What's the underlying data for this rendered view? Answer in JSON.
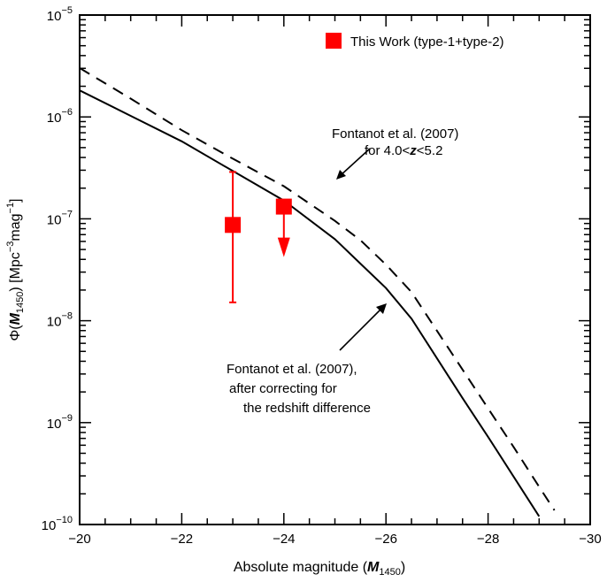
{
  "chart_data": {
    "type": "line",
    "xlabel": "Absolute magnitude (M1450)",
    "xlabel_parts": {
      "prefix": "Absolute magnitude (",
      "var": "M",
      "sub": "1450",
      "suffix": ")"
    },
    "ylabel": "Φ(M1450) [Mpc−3mag−1]",
    "ylabel_parts": {
      "phi": "Φ(",
      "var": "M",
      "sub": "1450",
      "unit_open": ") [Mpc",
      "exp1": "−3",
      "mag": "mag",
      "exp2": "−1",
      "close": "]"
    },
    "xlim": [
      -20,
      -30
    ],
    "ylim_log10": [
      -10,
      -5
    ],
    "y_scale": "log",
    "x_ticks": [
      -20,
      -22,
      -24,
      -26,
      -28,
      -30
    ],
    "x_tick_labels": [
      "−20",
      "−22",
      "−24",
      "−26",
      "−28",
      "−30"
    ],
    "y_ticks_log10": [
      -10,
      -9,
      -8,
      -7,
      -6,
      -5
    ],
    "y_tick_labels": [
      {
        "base": "10",
        "exp": "−10"
      },
      {
        "base": "10",
        "exp": "−9"
      },
      {
        "base": "10",
        "exp": "−8"
      },
      {
        "base": "10",
        "exp": "−7"
      },
      {
        "base": "10",
        "exp": "−6"
      },
      {
        "base": "10",
        "exp": "−5"
      }
    ],
    "series": [
      {
        "style": "solid",
        "color": "#000000",
        "x": [
          -20.0,
          -21.0,
          -22.0,
          -23.0,
          -24.0,
          -25.0,
          -25.5,
          -26.0,
          -26.5,
          -27.0,
          -27.5,
          -28.0,
          -28.5,
          -29.0
        ],
        "log_y": [
          -5.74,
          -5.99,
          -6.24,
          -6.53,
          -6.82,
          -7.2,
          -7.44,
          -7.68,
          -7.98,
          -8.37,
          -8.76,
          -9.14,
          -9.53,
          -9.92
        ]
      },
      {
        "style": "dashed",
        "color": "#000000",
        "x": [
          -20.0,
          -21.0,
          -22.0,
          -23.0,
          -24.0,
          -25.0,
          -25.5,
          -26.0,
          -26.5,
          -27.0,
          -27.5,
          -28.0,
          -28.5,
          -29.0,
          -29.3
        ],
        "log_y": [
          -5.52,
          -5.82,
          -6.13,
          -6.41,
          -6.68,
          -7.02,
          -7.21,
          -7.45,
          -7.72,
          -8.1,
          -8.48,
          -8.86,
          -9.24,
          -9.63,
          -9.86
        ]
      }
    ],
    "points": [
      {
        "x": -23.0,
        "log_y": -7.06,
        "log_err_lo": -7.82,
        "log_err_hi": -6.54,
        "upper_limit": false
      },
      {
        "x": -24.0,
        "log_y": -6.88,
        "upper_limit": true
      }
    ],
    "points_color": "#ff0000",
    "legend": {
      "label": "This Work (type-1+type-2)",
      "placement": "top-right"
    },
    "annotations": [
      {
        "lines": [
          "Fontanot et al. (2007)",
          "for 4.0<z<5.2"
        ]
      },
      {
        "lines": [
          "Fontanot et al. (2007),",
          "after correcting for",
          "the redshift difference"
        ]
      }
    ]
  }
}
